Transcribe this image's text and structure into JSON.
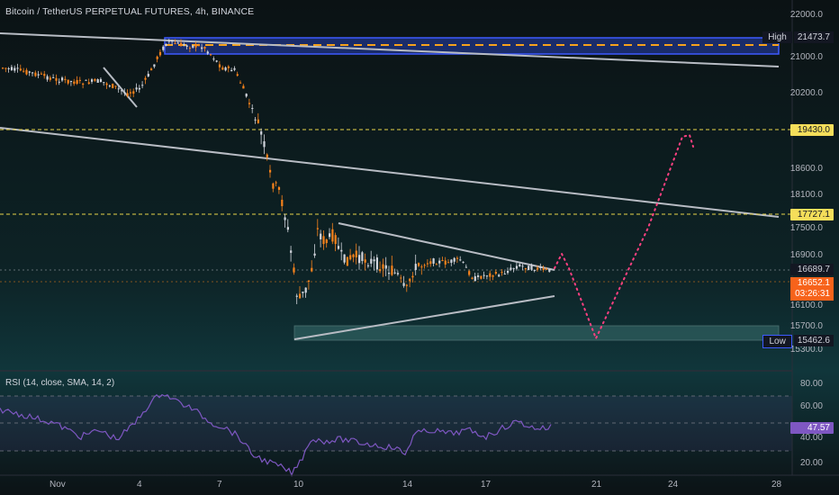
{
  "header": {
    "title": "Bitcoin / TetherUS PERPETUAL FUTURES, 4h, BINANCE"
  },
  "rsi": {
    "label": "RSI (14, close, SMA, 14, 2)",
    "value": "47.57",
    "levels": [
      "80.00",
      "60.00",
      "40.00",
      "20.00"
    ]
  },
  "price_axis": {
    "labels": [
      "22000.0",
      "21000.0",
      "20200.0",
      "18600.0",
      "18100.0",
      "17500.0",
      "16900.0",
      "16100.0",
      "15700.0",
      "15300.0"
    ]
  },
  "price_tags": {
    "high": {
      "label": "High",
      "value": "21473.7"
    },
    "level_19430": "19430.0",
    "level_17727": "17727.1",
    "last_close": "16689.7",
    "current": {
      "price": "16652.1",
      "countdown": "03:26:31"
    },
    "low": {
      "label": "Low",
      "value": "15462.6"
    }
  },
  "time_axis": {
    "labels": [
      "Nov",
      "4",
      "7",
      "10",
      "14",
      "17",
      "21",
      "24",
      "28"
    ]
  },
  "colors": {
    "up": "#d1d4dc",
    "down": "#f7821b",
    "zone": "#2c39a0",
    "hline": "#e8d44a",
    "path": "#ff4081",
    "rsi": "#7e57c2"
  }
}
